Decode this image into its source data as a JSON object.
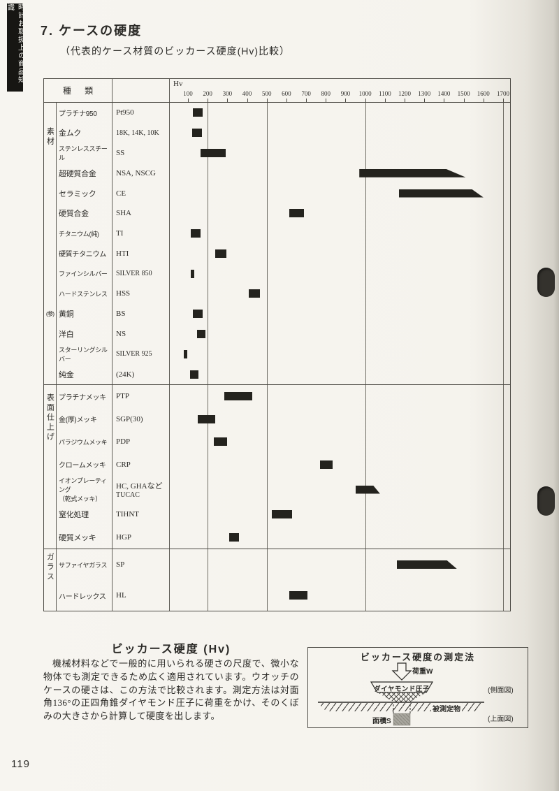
{
  "page": {
    "sidebar_tab": "時計お取扱上の商品知識",
    "title": "7. ケースの硬度",
    "subtitle": "（代表的ケース材質のビッカース硬度(Hv)比較）",
    "page_number": "119"
  },
  "chart_data": {
    "type": "bar",
    "orientation": "horizontal",
    "title": "代表的ケース材質のビッカース硬度(Hv)比較",
    "axis_label": "Hv",
    "header_col_label": "種 類",
    "axis_range": [
      100,
      1700
    ],
    "axis_ticks": [
      100,
      200,
      300,
      400,
      500,
      600,
      700,
      800,
      900,
      1000,
      1100,
      1200,
      1300,
      1400,
      1500,
      1600,
      1700
    ],
    "gridlines_hv": [
      200,
      500,
      1000,
      1700
    ],
    "legend": "bars show Vickers hardness range; slanted right end = extends beyond",
    "sections": [
      {
        "label": "素材",
        "rows": [
          {
            "name": "プラチナ950",
            "code": "Pt950",
            "hv": [
              125,
              175
            ]
          },
          {
            "name": "金ムク",
            "code": "18K, 14K, 10K",
            "hv": [
              120,
              170
            ]
          },
          {
            "name": "ステンレススチール",
            "code": "SS",
            "hv": [
              165,
              290
            ]
          },
          {
            "name": "超硬質合金",
            "code": "NSA, NSCG",
            "hv": [
              970,
              1410
            ],
            "hv_tip": 1510
          },
          {
            "name": "セラミック",
            "code": "CE",
            "hv": [
              1170,
              1540
            ],
            "hv_tip": 1600
          },
          {
            "name": "硬質合金",
            "code": "SHA",
            "hv": [
              615,
              690
            ]
          },
          {
            "name": "チタニウム(純)",
            "code": "TI",
            "hv": [
              115,
              165
            ]
          },
          {
            "name": "硬質チタニウム",
            "code": "HTI",
            "hv": [
              240,
              295
            ]
          },
          {
            "name": "ファインシルバー",
            "code": "SILVER 850",
            "hv": [
              115,
              132
            ]
          },
          {
            "name": "ハードステンレス",
            "code": "HSS",
            "hv": [
              410,
              465
            ]
          },
          {
            "name": "黄銅",
            "prefix": "(参)",
            "code": "BS",
            "hv": [
              125,
              175
            ]
          },
          {
            "name": "洋白",
            "code": "NS",
            "hv": [
              145,
              190
            ]
          },
          {
            "name": "スターリングシルバー",
            "code": "SILVER 925",
            "hv": [
              78,
              95
            ]
          },
          {
            "name": "純金",
            "code": "(24K)",
            "hv": [
              110,
              155
            ]
          }
        ]
      },
      {
        "label": "表面仕上げ",
        "rows": [
          {
            "name": "プラチナメッキ",
            "code": "PTP",
            "hv": [
              285,
              425
            ]
          },
          {
            "name": "金(厚)メッキ",
            "code": "SGP(30)",
            "hv": [
              150,
              240
            ]
          },
          {
            "name": "パラジウムメッキ",
            "code": "PDP",
            "hv": [
              230,
              300
            ]
          },
          {
            "name": "クロームメッキ",
            "code": "CRP",
            "hv": [
              770,
              835
            ]
          },
          {
            "name": "イオンプレーティング",
            "name2": "（乾式メッキ）",
            "code": "HC, GHAなど",
            "code2": "TUCAC",
            "hv": [
              950,
              1040
            ],
            "hv_tip": 1075
          },
          {
            "name": "窒化処理",
            "code": "TIHNT",
            "hv": [
              525,
              630
            ]
          },
          {
            "name": "硬質メッキ",
            "code": "HGP",
            "hv": [
              310,
              360
            ]
          }
        ]
      },
      {
        "label": "ガラス",
        "rows": [
          {
            "name": "サファイヤガラス",
            "code": "SP",
            "hv": [
              1160,
              1415
            ],
            "hv_tip": 1465
          },
          {
            "name": "ハードレックス",
            "code": "HL",
            "hv": [
              615,
              705
            ]
          }
        ]
      }
    ]
  },
  "explanation": {
    "title": "ビッカース硬度 (Hv)",
    "body": "機械材料などで一般的に用いられる硬さの尺度で、微小な物体でも測定できるため広く適用されています。ウオッチのケースの硬さは、この方法で比較されます。測定方法は対面角136°の正四角錐ダイヤモンド圧子に荷重をかけ、そのくぼみの大きさから計算して硬度を出します。"
  },
  "diagram": {
    "title": "ビッカース硬度の測定法",
    "load_label": "荷重W",
    "indenter_label": "ダイヤモンド圧子",
    "specimen_label": "被測定物",
    "side_view_label": "(側面図)",
    "area_label": "面積S",
    "top_view_label": "(上面図)"
  }
}
